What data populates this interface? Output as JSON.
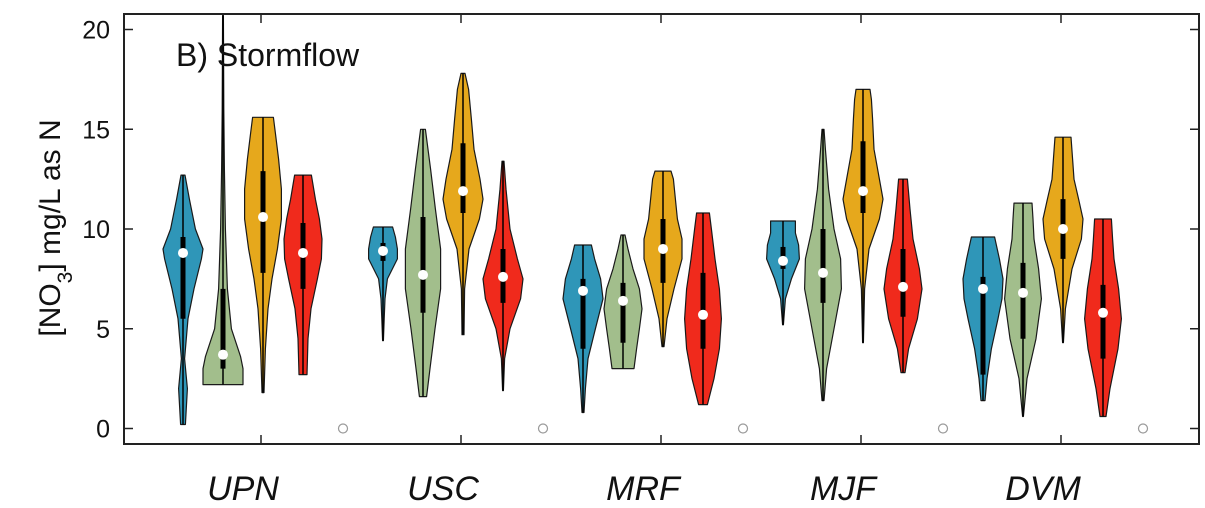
{
  "chart_data": {
    "type": "violin",
    "title": "B) Stormflow",
    "ylabel": {
      "prefix": "[NO",
      "subscript": "3",
      "suffix": "] mg/L as N"
    },
    "ylim": [
      -1,
      20.7
    ],
    "yticks": [
      0,
      5,
      10,
      15,
      20
    ],
    "categories": [
      "UPN",
      "USC",
      "MRF",
      "MJF",
      "DVM"
    ],
    "group_colors": [
      "#2f96b8",
      "#a2be8c",
      "#e6a81c",
      "#f02a1c"
    ],
    "empty_marker_value": 0,
    "groups": [
      {
        "category": "UPN",
        "violins": [
          {
            "min": 0.2,
            "max": 12.7,
            "q1": 5.5,
            "median": 8.8,
            "q3": 9.6,
            "profile": [
              [
                0.2,
                0.12
              ],
              [
                2.0,
                0.22
              ],
              [
                3.5,
                0.08
              ],
              [
                5.5,
                0.25
              ],
              [
                7.0,
                0.55
              ],
              [
                8.5,
                0.92
              ],
              [
                9.0,
                1.0
              ],
              [
                10.0,
                0.62
              ],
              [
                11.5,
                0.32
              ],
              [
                12.7,
                0.1
              ]
            ]
          },
          {
            "min": 2.2,
            "max": 20.7,
            "q1": 3.0,
            "median": 3.7,
            "q3": 7.0,
            "profile": [
              [
                2.2,
                1.0
              ],
              [
                3.0,
                1.0
              ],
              [
                3.6,
                0.88
              ],
              [
                5.0,
                0.42
              ],
              [
                7.0,
                0.22
              ],
              [
                10.0,
                0.12
              ],
              [
                13.0,
                0.07
              ],
              [
                16.0,
                0.04
              ],
              [
                20.7,
                0.02
              ]
            ]
          },
          {
            "min": 1.8,
            "max": 15.6,
            "q1": 7.8,
            "median": 10.6,
            "q3": 12.9,
            "profile": [
              [
                1.8,
                0.05
              ],
              [
                4.0,
                0.12
              ],
              [
                6.0,
                0.25
              ],
              [
                7.5,
                0.45
              ],
              [
                9.0,
                0.72
              ],
              [
                10.5,
                0.92
              ],
              [
                12.0,
                0.92
              ],
              [
                13.5,
                0.78
              ],
              [
                14.8,
                0.62
              ],
              [
                15.6,
                0.52
              ]
            ]
          },
          {
            "min": 2.7,
            "max": 12.7,
            "q1": 7.0,
            "median": 8.8,
            "q3": 10.3,
            "profile": [
              [
                2.7,
                0.2
              ],
              [
                4.5,
                0.25
              ],
              [
                6.0,
                0.4
              ],
              [
                7.5,
                0.72
              ],
              [
                8.5,
                0.92
              ],
              [
                9.5,
                0.95
              ],
              [
                10.5,
                0.82
              ],
              [
                11.5,
                0.62
              ],
              [
                12.7,
                0.42
              ]
            ]
          }
        ]
      },
      {
        "category": "USC",
        "violins": [
          {
            "min": 4.4,
            "max": 10.1,
            "q1": 8.4,
            "median": 8.9,
            "q3": 9.3,
            "profile": [
              [
                4.4,
                0.02
              ],
              [
                5.5,
                0.06
              ],
              [
                6.5,
                0.1
              ],
              [
                7.5,
                0.22
              ],
              [
                8.5,
                0.72
              ],
              [
                9.0,
                0.72
              ],
              [
                9.6,
                0.62
              ],
              [
                10.1,
                0.48
              ]
            ]
          },
          {
            "min": 1.6,
            "max": 15.0,
            "q1": 5.8,
            "median": 7.7,
            "q3": 10.6,
            "profile": [
              [
                1.6,
                0.18
              ],
              [
                3.0,
                0.35
              ],
              [
                5.0,
                0.6
              ],
              [
                7.0,
                0.88
              ],
              [
                9.0,
                0.88
              ],
              [
                11.0,
                0.62
              ],
              [
                13.0,
                0.38
              ],
              [
                15.0,
                0.12
              ]
            ]
          },
          {
            "min": 4.7,
            "max": 17.8,
            "q1": 10.8,
            "median": 11.9,
            "q3": 14.3,
            "profile": [
              [
                4.7,
                0.05
              ],
              [
                7.0,
                0.08
              ],
              [
                9.0,
                0.3
              ],
              [
                10.5,
                0.82
              ],
              [
                11.5,
                1.0
              ],
              [
                12.5,
                0.85
              ],
              [
                14.0,
                0.55
              ],
              [
                15.5,
                0.42
              ],
              [
                17.0,
                0.28
              ],
              [
                17.8,
                0.1
              ]
            ]
          },
          {
            "min": 1.9,
            "max": 13.4,
            "q1": 6.3,
            "median": 7.6,
            "q3": 9.0,
            "profile": [
              [
                1.9,
                0.02
              ],
              [
                3.5,
                0.08
              ],
              [
                5.0,
                0.35
              ],
              [
                6.5,
                0.88
              ],
              [
                7.5,
                1.0
              ],
              [
                8.5,
                0.72
              ],
              [
                10.0,
                0.35
              ],
              [
                12.0,
                0.15
              ],
              [
                13.4,
                0.05
              ]
            ]
          }
        ]
      },
      {
        "category": "MRF",
        "violins": [
          {
            "min": 0.8,
            "max": 9.2,
            "q1": 4.0,
            "median": 6.9,
            "q3": 7.5,
            "profile": [
              [
                0.8,
                0.05
              ],
              [
                2.0,
                0.12
              ],
              [
                3.5,
                0.25
              ],
              [
                5.0,
                0.62
              ],
              [
                6.5,
                1.0
              ],
              [
                7.5,
                0.88
              ],
              [
                8.5,
                0.58
              ],
              [
                9.2,
                0.42
              ]
            ]
          },
          {
            "min": 3.0,
            "max": 9.7,
            "q1": 4.3,
            "median": 6.4,
            "q3": 7.3,
            "profile": [
              [
                3.0,
                0.55
              ],
              [
                4.0,
                0.68
              ],
              [
                5.0,
                0.82
              ],
              [
                6.0,
                0.95
              ],
              [
                7.0,
                0.82
              ],
              [
                8.0,
                0.5
              ],
              [
                9.0,
                0.25
              ],
              [
                9.7,
                0.1
              ]
            ]
          },
          {
            "min": 4.1,
            "max": 12.9,
            "q1": 7.3,
            "median": 9.0,
            "q3": 10.5,
            "profile": [
              [
                4.1,
                0.05
              ],
              [
                5.5,
                0.2
              ],
              [
                7.0,
                0.55
              ],
              [
                8.5,
                0.95
              ],
              [
                9.5,
                0.95
              ],
              [
                10.5,
                0.72
              ],
              [
                11.5,
                0.62
              ],
              [
                12.5,
                0.52
              ],
              [
                12.9,
                0.4
              ]
            ]
          },
          {
            "min": 1.2,
            "max": 10.8,
            "q1": 4.0,
            "median": 5.7,
            "q3": 7.8,
            "profile": [
              [
                1.2,
                0.22
              ],
              [
                2.5,
                0.55
              ],
              [
                4.0,
                0.82
              ],
              [
                5.5,
                0.92
              ],
              [
                7.0,
                0.82
              ],
              [
                8.5,
                0.6
              ],
              [
                10.0,
                0.42
              ],
              [
                10.8,
                0.32
              ]
            ]
          }
        ]
      },
      {
        "category": "MJF",
        "violins": [
          {
            "min": 5.2,
            "max": 10.4,
            "q1": 8.0,
            "median": 8.4,
            "q3": 9.1,
            "profile": [
              [
                5.2,
                0.02
              ],
              [
                6.5,
                0.12
              ],
              [
                7.5,
                0.42
              ],
              [
                8.5,
                0.82
              ],
              [
                9.2,
                0.78
              ],
              [
                9.8,
                0.62
              ],
              [
                10.4,
                0.62
              ]
            ]
          },
          {
            "min": 1.4,
            "max": 15.0,
            "q1": 6.3,
            "median": 7.8,
            "q3": 10.0,
            "profile": [
              [
                1.4,
                0.05
              ],
              [
                3.0,
                0.18
              ],
              [
                5.0,
                0.55
              ],
              [
                7.0,
                0.92
              ],
              [
                8.5,
                0.88
              ],
              [
                10.0,
                0.55
              ],
              [
                12.0,
                0.28
              ],
              [
                14.0,
                0.12
              ],
              [
                15.0,
                0.05
              ]
            ]
          },
          {
            "min": 4.3,
            "max": 17.0,
            "q1": 10.8,
            "median": 11.9,
            "q3": 14.4,
            "profile": [
              [
                4.3,
                0.02
              ],
              [
                7.0,
                0.08
              ],
              [
                9.0,
                0.3
              ],
              [
                10.5,
                0.82
              ],
              [
                11.5,
                1.0
              ],
              [
                12.5,
                0.82
              ],
              [
                14.0,
                0.55
              ],
              [
                15.5,
                0.48
              ],
              [
                16.5,
                0.42
              ],
              [
                17.0,
                0.35
              ]
            ]
          },
          {
            "min": 2.8,
            "max": 12.5,
            "q1": 5.6,
            "median": 7.1,
            "q3": 9.0,
            "profile": [
              [
                2.8,
                0.1
              ],
              [
                4.0,
                0.28
              ],
              [
                5.5,
                0.72
              ],
              [
                7.0,
                0.95
              ],
              [
                8.0,
                0.82
              ],
              [
                9.5,
                0.5
              ],
              [
                11.0,
                0.35
              ],
              [
                12.5,
                0.22
              ]
            ]
          }
        ]
      },
      {
        "category": "DVM",
        "violins": [
          {
            "min": 1.4,
            "max": 9.6,
            "q1": 2.7,
            "median": 7.0,
            "q3": 7.6,
            "profile": [
              [
                1.4,
                0.1
              ],
              [
                2.5,
                0.2
              ],
              [
                4.0,
                0.42
              ],
              [
                5.5,
                0.75
              ],
              [
                6.5,
                0.95
              ],
              [
                7.5,
                1.0
              ],
              [
                8.5,
                0.82
              ],
              [
                9.6,
                0.58
              ]
            ]
          },
          {
            "min": 0.6,
            "max": 11.3,
            "q1": 4.5,
            "median": 6.8,
            "q3": 8.3,
            "profile": [
              [
                0.6,
                0.02
              ],
              [
                2.5,
                0.2
              ],
              [
                4.5,
                0.65
              ],
              [
                6.5,
                0.92
              ],
              [
                8.0,
                0.78
              ],
              [
                9.5,
                0.55
              ],
              [
                10.5,
                0.5
              ],
              [
                11.3,
                0.45
              ]
            ]
          },
          {
            "min": 4.3,
            "max": 14.6,
            "q1": 8.5,
            "median": 10.0,
            "q3": 11.5,
            "profile": [
              [
                4.3,
                0.02
              ],
              [
                6.0,
                0.12
              ],
              [
                8.0,
                0.45
              ],
              [
                9.5,
                0.92
              ],
              [
                10.5,
                1.0
              ],
              [
                11.5,
                0.78
              ],
              [
                12.5,
                0.55
              ],
              [
                13.5,
                0.48
              ],
              [
                14.6,
                0.4
              ]
            ]
          },
          {
            "min": 0.6,
            "max": 10.5,
            "q1": 3.5,
            "median": 5.8,
            "q3": 7.2,
            "profile": [
              [
                0.6,
                0.15
              ],
              [
                2.0,
                0.35
              ],
              [
                4.0,
                0.75
              ],
              [
                5.5,
                0.92
              ],
              [
                7.0,
                0.78
              ],
              [
                8.5,
                0.55
              ],
              [
                9.5,
                0.48
              ],
              [
                10.5,
                0.42
              ]
            ]
          }
        ]
      }
    ]
  }
}
